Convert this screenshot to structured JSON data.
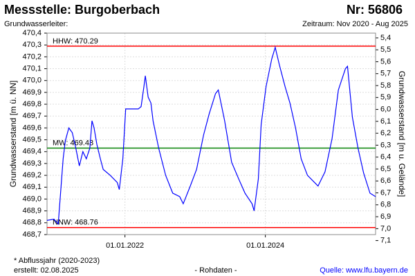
{
  "chart_data": {
    "type": "line",
    "title": "Messstelle: Burgoberbach",
    "station_number": "Nr: 56806",
    "subtitle": "Grundwasserleiter:",
    "period": "Zeitraum: Nov 2020 - Aug 2025",
    "ylabel": "Grundwasserstand [m ü. NN]",
    "y2label": "Grundwasserstand [m u. Gelände]",
    "footnote": "* Abflussjahr (2020-2023)",
    "created": "erstellt:  02.08.2025",
    "data_note": "- Rohdaten -",
    "source": "Quelle: www.lfu.bayern.de",
    "grid": true,
    "xlim": [
      2020.89,
      2025.57
    ],
    "xticks": [
      {
        "value": 2022.0,
        "label": "01.01.2022"
      },
      {
        "value": 2024.0,
        "label": "01.01.2024"
      }
    ],
    "ylim": [
      468.7,
      470.4
    ],
    "yticks": [
      {
        "value": 470.4,
        "label": "470,4"
      },
      {
        "value": 470.3,
        "label": "470,3"
      },
      {
        "value": 470.2,
        "label": "470,2"
      },
      {
        "value": 470.1,
        "label": "470,1"
      },
      {
        "value": 470.0,
        "label": "470,0"
      },
      {
        "value": 469.9,
        "label": "469,9"
      },
      {
        "value": 469.8,
        "label": "469,8"
      },
      {
        "value": 469.7,
        "label": "469,7"
      },
      {
        "value": 469.6,
        "label": "469,6"
      },
      {
        "value": 469.5,
        "label": "469,5"
      },
      {
        "value": 469.4,
        "label": "469,4"
      },
      {
        "value": 469.3,
        "label": "469,3"
      },
      {
        "value": 469.2,
        "label": "469,2"
      },
      {
        "value": 469.1,
        "label": "469,1"
      },
      {
        "value": 469.0,
        "label": "469,0"
      },
      {
        "value": 468.9,
        "label": "468,9"
      },
      {
        "value": 468.8,
        "label": "468,8"
      },
      {
        "value": 468.7,
        "label": "468,7"
      }
    ],
    "y2lim": [
      7.05,
      5.36
    ],
    "y2ticks": [
      {
        "value": 5.4,
        "label": "5,4"
      },
      {
        "value": 5.5,
        "label": "5,5"
      },
      {
        "value": 5.6,
        "label": "5,6"
      },
      {
        "value": 5.7,
        "label": "5,7"
      },
      {
        "value": 5.8,
        "label": "5,8"
      },
      {
        "value": 5.9,
        "label": "5,9"
      },
      {
        "value": 6.0,
        "label": "6,0"
      },
      {
        "value": 6.1,
        "label": "6,1"
      },
      {
        "value": 6.2,
        "label": "6,2"
      },
      {
        "value": 6.3,
        "label": "6,3"
      },
      {
        "value": 6.4,
        "label": "6,4"
      },
      {
        "value": 6.5,
        "label": "6,5"
      },
      {
        "value": 6.6,
        "label": "6,6"
      },
      {
        "value": 6.7,
        "label": "6,7"
      },
      {
        "value": 6.8,
        "label": "6,8"
      },
      {
        "value": 6.9,
        "label": "6,9"
      },
      {
        "value": 7.0,
        "label": "7,0"
      },
      {
        "value": 7.1,
        "label": "7,1"
      }
    ],
    "reference_lines": [
      {
        "value": 470.29,
        "label": "HHW: 470.29",
        "color": "#ff0000"
      },
      {
        "value": 469.43,
        "label": "MW: 469.43",
        "color": "#008000"
      },
      {
        "value": 468.76,
        "label": "NNW: 468.76",
        "color": "#ff0000"
      }
    ],
    "series": [
      {
        "color": "#0000ff",
        "x": [
          2020.89,
          2020.99,
          2021.05,
          2021.12,
          2021.15,
          2021.2,
          2021.25,
          2021.3,
          2021.35,
          2021.4,
          2021.45,
          2021.5,
          2021.53,
          2021.56,
          2021.6,
          2021.65,
          2021.69,
          2021.79,
          2021.89,
          2021.92,
          2021.97,
          2022.01,
          2022.19,
          2022.23,
          2022.27,
          2022.29,
          2022.33,
          2022.37,
          2022.4,
          2022.48,
          2022.58,
          2022.68,
          2022.78,
          2022.83,
          2022.93,
          2023.02,
          2023.12,
          2023.2,
          2023.29,
          2023.33,
          2023.42,
          2023.52,
          2023.62,
          2023.71,
          2023.81,
          2023.84,
          2023.9,
          2023.94,
          2024.01,
          2024.09,
          2024.14,
          2024.2,
          2024.28,
          2024.35,
          2024.43,
          2024.51,
          2024.6,
          2024.75,
          2024.85,
          2024.95,
          2025.04,
          2025.14,
          2025.17,
          2025.24,
          2025.32,
          2025.4,
          2025.49,
          2025.57
        ],
        "values": [
          468.82,
          468.83,
          468.79,
          469.34,
          469.49,
          469.6,
          469.56,
          469.43,
          469.28,
          469.4,
          469.34,
          469.43,
          469.66,
          469.6,
          469.46,
          469.34,
          469.25,
          469.2,
          469.14,
          469.08,
          469.34,
          469.76,
          469.76,
          469.78,
          469.95,
          470.04,
          469.86,
          469.81,
          469.66,
          469.43,
          469.2,
          469.05,
          469.02,
          468.96,
          469.11,
          469.25,
          469.54,
          469.72,
          469.89,
          469.92,
          469.66,
          469.31,
          469.17,
          469.05,
          468.96,
          468.9,
          469.17,
          469.63,
          469.95,
          470.18,
          470.28,
          470.13,
          469.95,
          469.81,
          469.6,
          469.34,
          469.2,
          469.11,
          469.23,
          469.51,
          469.92,
          470.1,
          470.12,
          469.69,
          469.43,
          469.22,
          469.05,
          469.02
        ]
      }
    ]
  }
}
